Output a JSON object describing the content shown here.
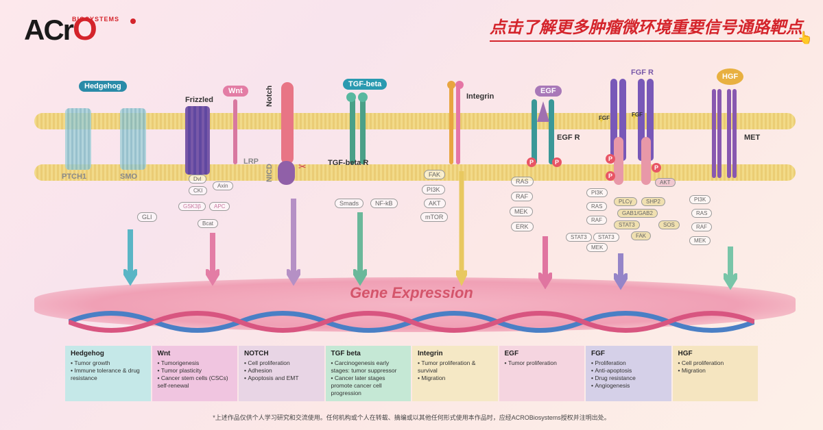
{
  "logo": {
    "main": "ACrO",
    "sub": "BIOSYSTEMS"
  },
  "title": "点击了解更多肿瘤微环境重要信号通路靶点",
  "geneExpression": "Gene Expression",
  "pathways": {
    "hedgehog": {
      "label": "Hedgehog",
      "ptch": "PTCH1",
      "smo": "SMO",
      "gli": "GLI"
    },
    "wnt": {
      "label": "Wnt",
      "frizzled": "Frizzled",
      "lrp": "LRP",
      "dvl": "Dvl",
      "cki": "CKI",
      "axin": "Axin",
      "gsk": "GSK3β",
      "apc": "APC",
      "bcat": "Bcat"
    },
    "notch": {
      "label": "Notch",
      "nicd": "NICD",
      "scissors": "✂"
    },
    "tgf": {
      "label": "TGF-beta",
      "receptor": "TGF-beta R",
      "smads": "Smads",
      "nfkb": "NF-kB"
    },
    "integrin": {
      "label": "Integrin",
      "fak": "FAK",
      "pi3k": "PI3K",
      "akt": "AKT",
      "mtor": "mTOR"
    },
    "egf": {
      "label": "EGF",
      "receptor": "EGF R",
      "ras": "RAS",
      "raf": "RAF",
      "mek": "MEK",
      "erk": "ERK"
    },
    "fgf": {
      "label": "FGF R",
      "fgf": "FGF",
      "pi3k": "PI3K",
      "ras": "RAS",
      "raf": "RAF",
      "stat3": "STAT3",
      "mek": "MEK",
      "akt": "AKT",
      "plcy": "PLCγ",
      "shp2": "SHP2",
      "gab": "GAB1/GAB2",
      "sos": "SOS",
      "fak2": "FAK"
    },
    "hgf": {
      "label": "HGF",
      "met": "MET",
      "pi3k": "PI3K",
      "ras": "RAS",
      "raf": "RAF",
      "mek": "MEK"
    }
  },
  "p": "P",
  "legend": [
    {
      "title": "Hedgehog",
      "color": "#c5e8e8",
      "items": [
        "Tumor growth",
        "Immune tolerance & drug resistance"
      ]
    },
    {
      "title": "Wnt",
      "color": "#f0c5e0",
      "items": [
        "Tumorigenesis",
        "Tumor plasticity",
        "Cancer stem cells (CSCs) self-renewal"
      ]
    },
    {
      "title": "NOTCH",
      "color": "#e8d5e5",
      "items": [
        "Cell proliferation",
        "Adhesion",
        "Apoptosis and EMT"
      ]
    },
    {
      "title": "TGF beta",
      "color": "#c5e8d5",
      "items": [
        "Carcinogenesis early stages: tumor suppressor",
        "Cancer later stages promote cancer cell progression"
      ]
    },
    {
      "title": "Integrin",
      "color": "#f5e8c5",
      "items": [
        "Tumor proliferation & survival",
        "Migration"
      ]
    },
    {
      "title": "EGF",
      "color": "#f5d5e0",
      "items": [
        "Tumor proliferation"
      ]
    },
    {
      "title": "FGF",
      "color": "#d5d0e8",
      "items": [
        "Proliferation",
        "Anti-apoptosis",
        "Drug resistance",
        "Angiogenesis"
      ]
    },
    {
      "title": "HGF",
      "color": "#f5e5c0",
      "items": [
        "Cell proliferation",
        "Migration"
      ]
    }
  ],
  "footer": "*上述作品仅供个人学习研究和交流使用。任何机构或个人在转载、摘编或以其他任何形式使用本作品时，应经ACROBiosystems授权并注明出处。",
  "colors": {
    "hh_arrow": "#5ab5c5",
    "wnt_arrow": "#e37da5",
    "notch_arrow": "#b590c5",
    "tgf_arrow": "#6ab89a",
    "integrin_arrow": "#e8c860",
    "egf_arrow": "#e075a0",
    "fgf_arrow": "#9585c8",
    "hgf_arrow": "#78c5a8"
  }
}
